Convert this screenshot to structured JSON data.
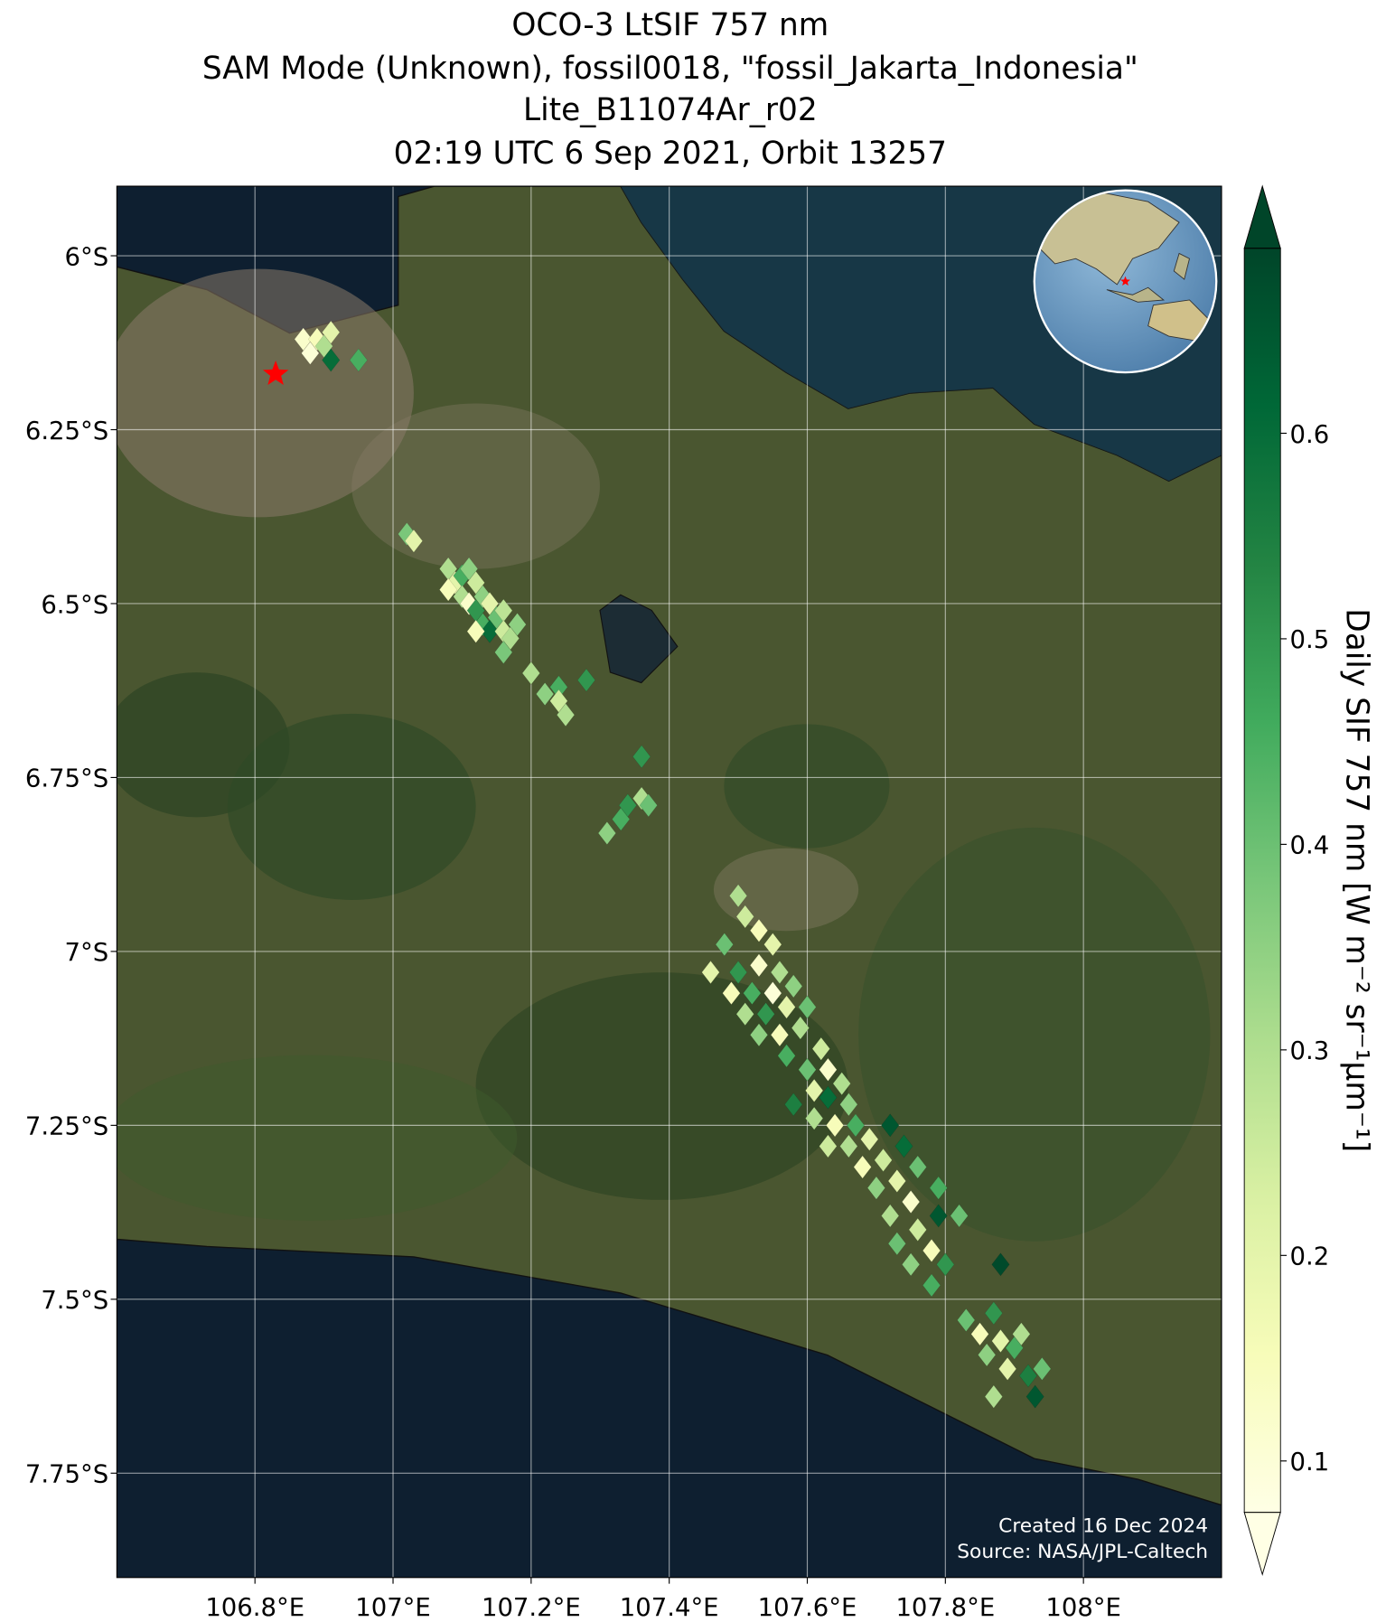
{
  "chart_data": {
    "type": "scatter",
    "title": "OCO-3 LtSIF 757 nm",
    "subtitle": [
      "SAM Mode (Unknown), fossil0018, \"fossil_Jakarta_Indonesia\"",
      "Lite_B11074Ar_r02",
      "02:19 UTC 6 Sep 2021, Orbit 13257"
    ],
    "x": [
      106.87,
      106.89,
      106.88,
      106.9,
      106.91,
      106.91,
      106.95,
      107.02,
      107.03,
      107.08,
      107.09,
      107.1,
      107.11,
      107.12,
      107.08,
      107.1,
      107.11,
      107.12,
      107.13,
      107.14,
      107.15,
      107.16,
      107.13,
      107.14,
      107.16,
      107.17,
      107.18,
      107.16,
      107.12,
      107.2,
      107.22,
      107.24,
      107.24,
      107.25,
      107.28,
      107.36,
      107.31,
      107.33,
      107.34,
      107.36,
      107.37,
      107.5,
      107.51,
      107.53,
      107.48,
      107.55,
      107.46,
      107.5,
      107.53,
      107.56,
      107.49,
      107.52,
      107.55,
      107.58,
      107.51,
      107.54,
      107.57,
      107.6,
      107.53,
      107.56,
      107.59,
      107.57,
      107.62,
      107.6,
      107.63,
      107.65,
      107.58,
      107.61,
      107.63,
      107.66,
      107.61,
      107.64,
      107.67,
      107.63,
      107.66,
      107.69,
      107.72,
      107.68,
      107.71,
      107.74,
      107.7,
      107.73,
      107.76,
      107.72,
      107.75,
      107.79,
      107.73,
      107.76,
      107.79,
      107.82,
      107.75,
      107.78,
      107.8,
      107.78,
      107.88,
      107.83,
      107.85,
      107.87,
      107.86,
      107.88,
      107.9,
      107.91,
      107.89,
      107.92,
      107.87,
      107.93,
      107.94
    ],
    "y": [
      -6.12,
      -6.12,
      -6.14,
      -6.13,
      -6.11,
      -6.15,
      -6.15,
      -6.4,
      -6.41,
      -6.45,
      -6.47,
      -6.46,
      -6.45,
      -6.47,
      -6.48,
      -6.49,
      -6.5,
      -6.51,
      -6.49,
      -6.5,
      -6.52,
      -6.51,
      -6.53,
      -6.54,
      -6.54,
      -6.55,
      -6.53,
      -6.57,
      -6.54,
      -6.6,
      -6.63,
      -6.62,
      -6.64,
      -6.66,
      -6.61,
      -6.72,
      -6.83,
      -6.81,
      -6.79,
      -6.78,
      -6.79,
      -6.92,
      -6.95,
      -6.97,
      -6.99,
      -6.99,
      -7.03,
      -7.03,
      -7.02,
      -7.03,
      -7.06,
      -7.06,
      -7.06,
      -7.05,
      -7.09,
      -7.09,
      -7.08,
      -7.08,
      -7.12,
      -7.12,
      -7.11,
      -7.15,
      -7.14,
      -7.17,
      -7.17,
      -7.19,
      -7.22,
      -7.2,
      -7.21,
      -7.22,
      -7.24,
      -7.25,
      -7.25,
      -7.28,
      -7.28,
      -7.27,
      -7.25,
      -7.31,
      -7.3,
      -7.28,
      -7.34,
      -7.33,
      -7.31,
      -7.38,
      -7.36,
      -7.34,
      -7.42,
      -7.4,
      -7.38,
      -7.38,
      -7.45,
      -7.43,
      -7.45,
      -7.48,
      -7.45,
      -7.53,
      -7.55,
      -7.52,
      -7.58,
      -7.56,
      -7.57,
      -7.55,
      -7.6,
      -7.61,
      -7.64,
      -7.64,
      -7.6
    ],
    "values": [
      0.12,
      0.15,
      0.1,
      0.3,
      0.2,
      0.6,
      0.45,
      0.38,
      0.2,
      0.3,
      0.2,
      0.45,
      0.35,
      0.25,
      0.15,
      0.3,
      0.12,
      0.5,
      0.35,
      0.2,
      0.4,
      0.28,
      0.45,
      0.6,
      0.25,
      0.3,
      0.35,
      0.38,
      0.15,
      0.3,
      0.35,
      0.45,
      0.25,
      0.3,
      0.5,
      0.5,
      0.35,
      0.45,
      0.5,
      0.3,
      0.4,
      0.3,
      0.25,
      0.15,
      0.4,
      0.2,
      0.2,
      0.5,
      0.12,
      0.3,
      0.15,
      0.45,
      0.1,
      0.35,
      0.3,
      0.5,
      0.2,
      0.4,
      0.35,
      0.15,
      0.3,
      0.45,
      0.25,
      0.4,
      0.12,
      0.3,
      0.55,
      0.2,
      0.6,
      0.35,
      0.3,
      0.15,
      0.45,
      0.25,
      0.3,
      0.2,
      0.65,
      0.15,
      0.25,
      0.6,
      0.35,
      0.2,
      0.4,
      0.3,
      0.12,
      0.45,
      0.4,
      0.25,
      0.65,
      0.4,
      0.35,
      0.15,
      0.5,
      0.45,
      0.68,
      0.4,
      0.15,
      0.5,
      0.35,
      0.2,
      0.45,
      0.3,
      0.2,
      0.55,
      0.3,
      0.65,
      0.4
    ],
    "xlim": [
      106.6,
      108.2
    ],
    "ylim": [
      -7.9,
      -5.9
    ],
    "xticks": [
      {
        "value": 106.8,
        "label": "106.8°E"
      },
      {
        "value": 107,
        "label": "107°E"
      },
      {
        "value": 107.2,
        "label": "107.2°E"
      },
      {
        "value": 107.4,
        "label": "107.4°E"
      },
      {
        "value": 107.6,
        "label": "107.6°E"
      },
      {
        "value": 107.8,
        "label": "107.8°E"
      },
      {
        "value": 108,
        "label": "108°E"
      }
    ],
    "yticks": [
      {
        "value": -6,
        "label": "6°S"
      },
      {
        "value": -6.25,
        "label": "6.25°S"
      },
      {
        "value": -6.5,
        "label": "6.5°S"
      },
      {
        "value": -6.75,
        "label": "6.75°S"
      },
      {
        "value": -7,
        "label": "7°S"
      },
      {
        "value": -7.25,
        "label": "7.25°S"
      },
      {
        "value": -7.5,
        "label": "7.5°S"
      },
      {
        "value": -7.75,
        "label": "7.75°S"
      }
    ],
    "grid": true,
    "target": {
      "x": 106.83,
      "y": -6.17,
      "color": "red"
    },
    "colorbar": {
      "label": "Daily SIF 757 nm [W m⁻² sr⁻¹μm⁻¹]",
      "lim": [
        0.075,
        0.69
      ],
      "ticks": [
        0.1,
        0.2,
        0.3,
        0.4,
        0.5,
        0.6
      ],
      "extend": "both",
      "colormap": "YlGn"
    },
    "annotations": [
      "Created 16 Dec 2024",
      "Source: NASA/JPL-Caltech"
    ]
  }
}
